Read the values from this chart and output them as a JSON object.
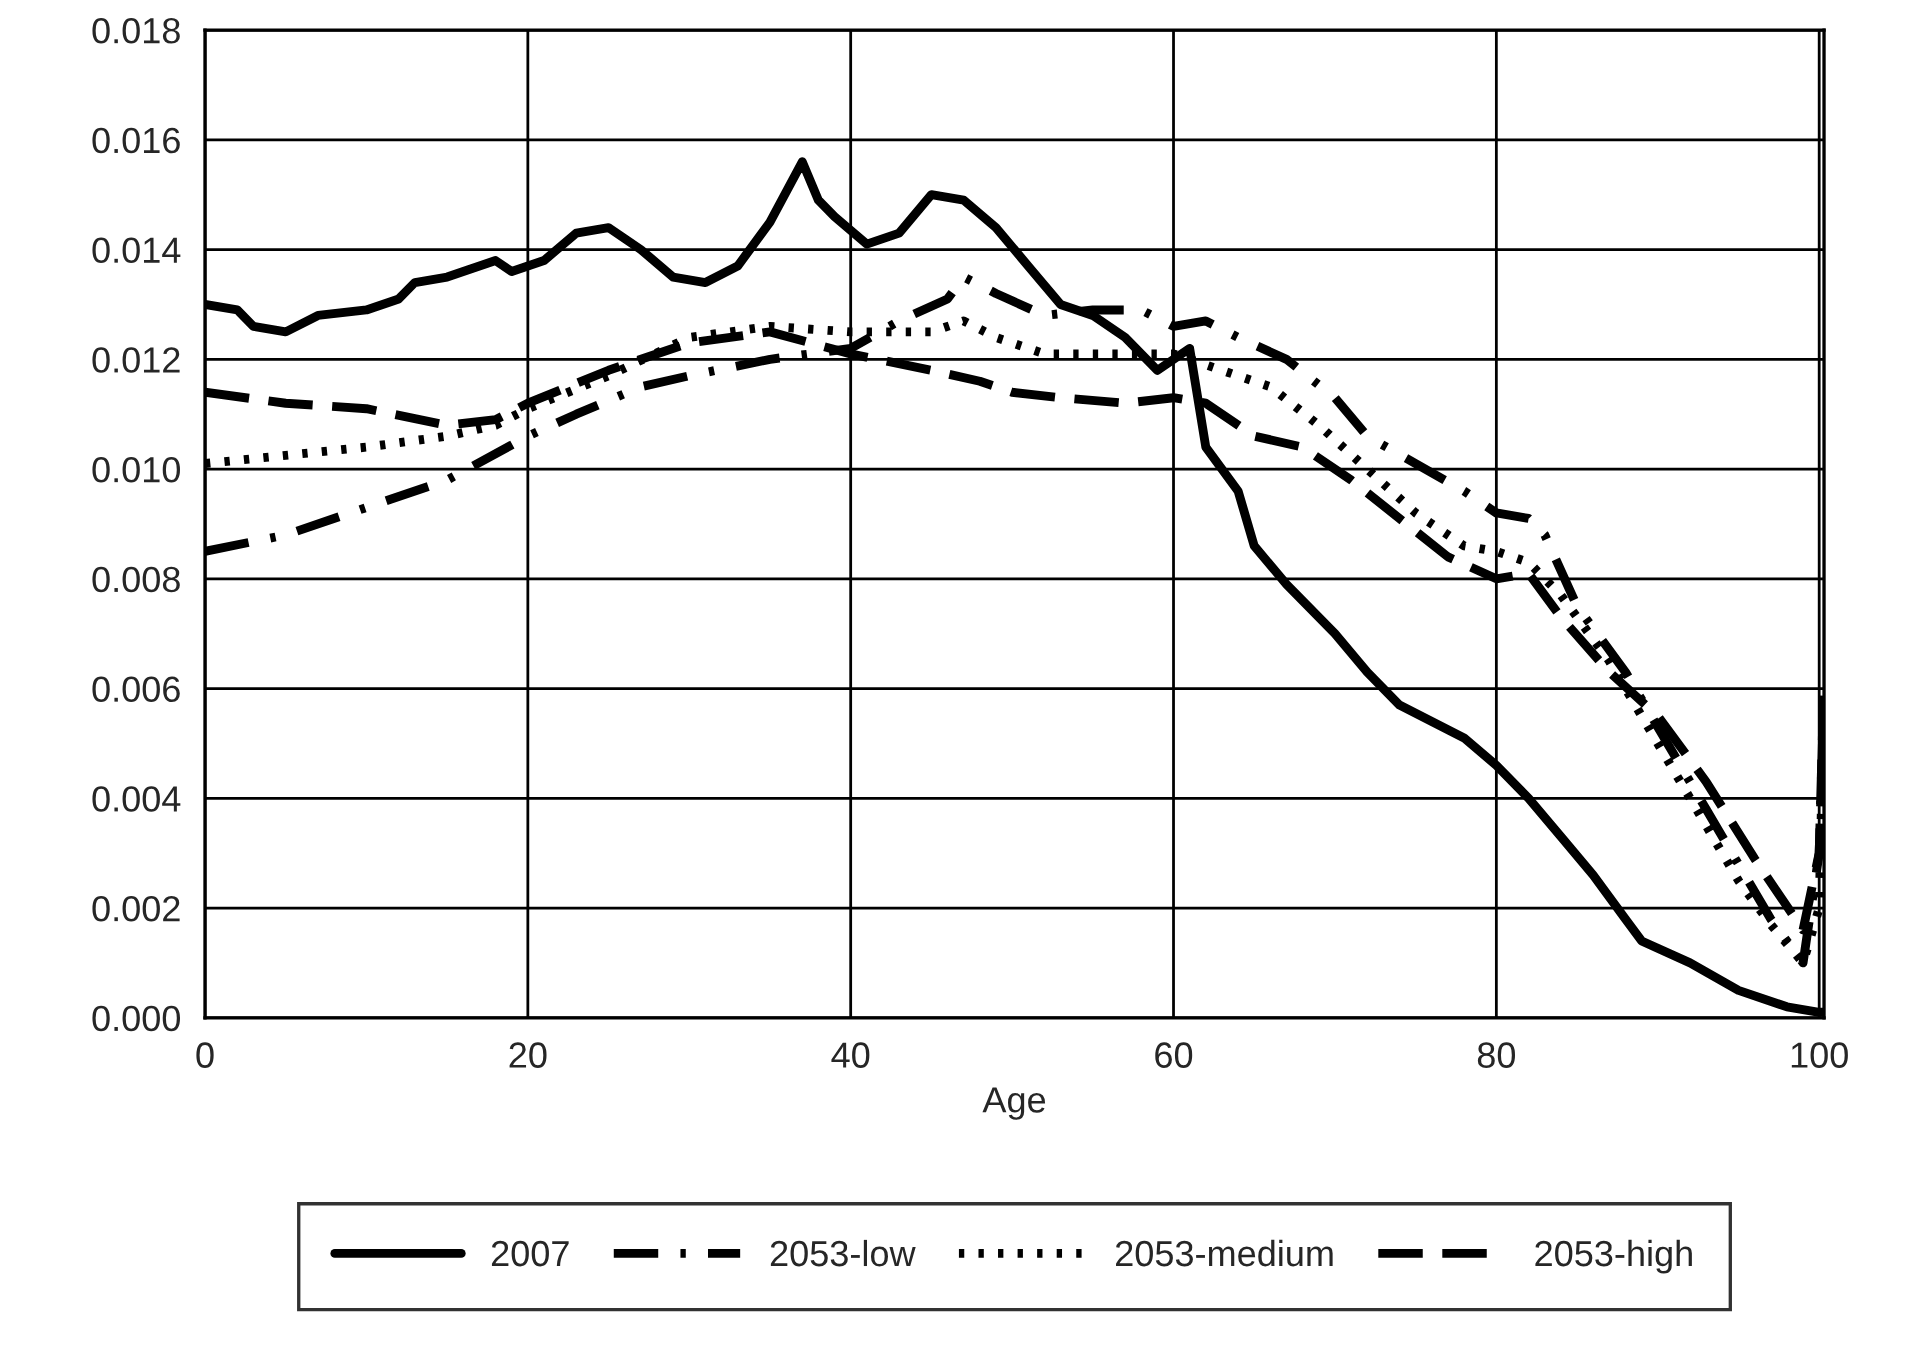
{
  "chart_data": {
    "type": "line",
    "xlabel": "Age",
    "xlim": [
      0,
      100.3
    ],
    "xticks": [
      0,
      20,
      40,
      60,
      80,
      100
    ],
    "ylim": [
      0,
      0.018
    ],
    "yticks": [
      {
        "value": 0,
        "label": "0.000"
      },
      {
        "value": 0.002,
        "label": "0.002"
      },
      {
        "value": 0.004,
        "label": "0.004"
      },
      {
        "value": 0.006,
        "label": "0.006"
      },
      {
        "value": 0.008,
        "label": "0.008"
      },
      {
        "value": 0.01,
        "label": "0.010"
      },
      {
        "value": 0.012,
        "label": "0.012"
      },
      {
        "value": 0.014,
        "label": "0.014"
      },
      {
        "value": 0.016,
        "label": "0.016"
      },
      {
        "value": 0.018,
        "label": "0.018"
      }
    ],
    "grid": true,
    "legend": "bottom",
    "marker": "none",
    "series": [
      {
        "name": "2007",
        "color": "#000000",
        "line_style": "solid",
        "x": [
          0,
          2,
          3,
          5,
          7,
          10,
          12,
          13,
          15,
          18,
          19,
          21,
          23,
          25,
          27,
          29,
          31,
          33,
          35,
          37,
          38,
          39,
          41,
          43,
          45,
          47,
          49,
          51,
          53,
          55,
          57,
          59,
          60,
          61,
          62,
          64,
          65,
          67,
          70,
          72,
          74,
          76,
          78,
          80,
          82,
          84,
          86,
          88,
          89,
          92,
          95,
          98,
          100,
          100.3
        ],
        "values": [
          0.013,
          0.0129,
          0.0126,
          0.0125,
          0.0128,
          0.0129,
          0.0131,
          0.0134,
          0.0135,
          0.0138,
          0.0136,
          0.0138,
          0.0143,
          0.0144,
          0.014,
          0.0135,
          0.0134,
          0.0137,
          0.0145,
          0.0156,
          0.0149,
          0.0146,
          0.0141,
          0.0143,
          0.015,
          0.0149,
          0.0144,
          0.0137,
          0.013,
          0.0128,
          0.0124,
          0.0118,
          0.012,
          0.0122,
          0.0104,
          0.0096,
          0.0086,
          0.0079,
          0.007,
          0.0063,
          0.0057,
          0.0054,
          0.0051,
          0.0046,
          0.004,
          0.0033,
          0.0026,
          0.0018,
          0.0014,
          0.001,
          0.0005,
          0.0002,
          0.0001,
          0.0001
        ]
      },
      {
        "name": "2053-low",
        "color": "#000000",
        "line_style": "dashdot",
        "x": [
          0,
          5,
          10,
          15,
          20,
          23,
          27,
          30,
          35,
          40,
          43,
          46,
          47,
          49,
          52,
          55,
          58,
          60,
          62,
          64,
          67,
          70,
          72,
          75,
          78,
          80,
          82,
          83,
          85,
          88,
          90,
          93,
          95,
          97,
          99,
          100,
          100.3
        ],
        "values": [
          0.0085,
          0.0088,
          0.0093,
          0.0098,
          0.0106,
          0.011,
          0.0115,
          0.0117,
          0.012,
          0.0122,
          0.0127,
          0.0131,
          0.0135,
          0.0132,
          0.0128,
          0.0129,
          0.0129,
          0.0126,
          0.0127,
          0.0124,
          0.012,
          0.0113,
          0.0106,
          0.0101,
          0.0096,
          0.0092,
          0.0091,
          0.0088,
          0.0075,
          0.0063,
          0.0053,
          0.0038,
          0.0028,
          0.0018,
          0.001,
          0.003,
          0.006
        ]
      },
      {
        "name": "2053-medium",
        "color": "#000000",
        "line_style": "dotted",
        "x": [
          0,
          10,
          15,
          18,
          20,
          25,
          30,
          35,
          40,
          45,
          47,
          49,
          52,
          56,
          60,
          63,
          66,
          69,
          72,
          75,
          78,
          80,
          82,
          84,
          87,
          90,
          93,
          95,
          97,
          99,
          100,
          100.3
        ],
        "values": [
          0.0101,
          0.0104,
          0.0106,
          0.0108,
          0.0111,
          0.0117,
          0.0124,
          0.0126,
          0.0125,
          0.0125,
          0.0127,
          0.0124,
          0.0121,
          0.0121,
          0.0121,
          0.0118,
          0.0115,
          0.0108,
          0.01,
          0.0092,
          0.0086,
          0.0085,
          0.0083,
          0.0077,
          0.0065,
          0.005,
          0.0035,
          0.0025,
          0.0017,
          0.001,
          0.002,
          0.006
        ]
      },
      {
        "name": "2053-high",
        "color": "#000000",
        "line_style": "dashed",
        "x": [
          0,
          5,
          10,
          15,
          18,
          20,
          25,
          30,
          35,
          40,
          45,
          48,
          50,
          53,
          57,
          60,
          62,
          65,
          68,
          71,
          74,
          77,
          80,
          82,
          84,
          87,
          90,
          93,
          96,
          99,
          100,
          100.3
        ],
        "values": [
          0.0114,
          0.0112,
          0.0111,
          0.0108,
          0.0109,
          0.0112,
          0.0118,
          0.0123,
          0.0125,
          0.0121,
          0.0118,
          0.0116,
          0.0114,
          0.0113,
          0.0112,
          0.0113,
          0.0112,
          0.0106,
          0.0104,
          0.0098,
          0.0091,
          0.0084,
          0.008,
          0.0081,
          0.0073,
          0.0063,
          0.0055,
          0.0043,
          0.0029,
          0.0016,
          0.003,
          0.0062
        ]
      }
    ]
  }
}
